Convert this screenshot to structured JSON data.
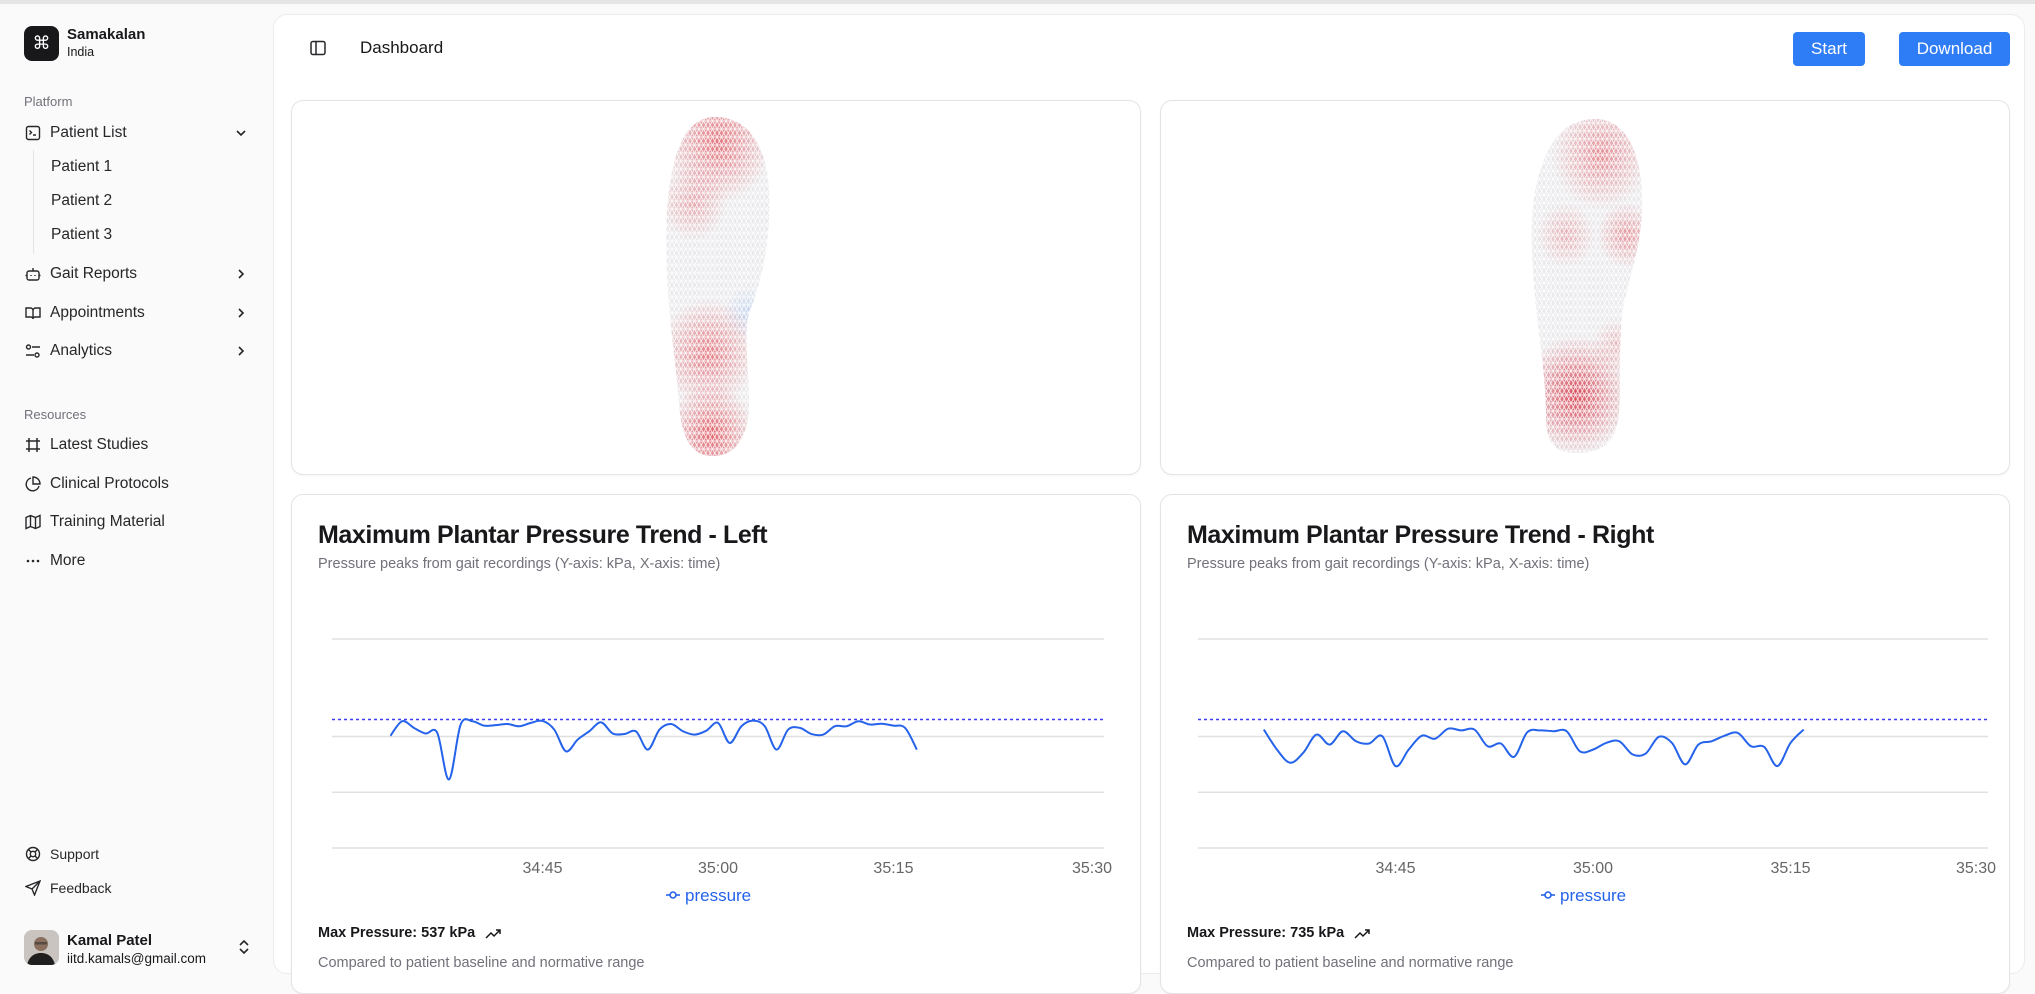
{
  "sidebar": {
    "brand": {
      "name": "Samakalan",
      "subtitle": "India",
      "icon": "command-icon"
    },
    "platform_label": "Platform",
    "platform_items": [
      {
        "label": "Patient List",
        "icon": "terminal-square-icon",
        "expanded": true,
        "children": [
          "Patient 1",
          "Patient 2",
          "Patient 3"
        ]
      },
      {
        "label": "Gait Reports",
        "icon": "bot-icon"
      },
      {
        "label": "Appointments",
        "icon": "book-open-icon"
      },
      {
        "label": "Analytics",
        "icon": "settings-sliders-icon"
      }
    ],
    "resources_label": "Resources",
    "resource_items": [
      {
        "label": "Latest Studies",
        "icon": "frame-icon"
      },
      {
        "label": "Clinical Protocols",
        "icon": "pie-chart-icon"
      },
      {
        "label": "Training Material",
        "icon": "map-icon"
      },
      {
        "label": "More",
        "icon": "more-horizontal-icon"
      }
    ],
    "footer_items": [
      {
        "label": "Support",
        "icon": "life-buoy-icon"
      },
      {
        "label": "Feedback",
        "icon": "send-icon"
      }
    ],
    "user": {
      "name": "Kamal Patel",
      "email": "iitd.kamals@gmail.com"
    }
  },
  "header": {
    "title": "Dashboard",
    "start_label": "Start",
    "download_label": "Download",
    "accent": "#2f7df6"
  },
  "foot_maps": [
    {
      "side": "left"
    },
    {
      "side": "right"
    }
  ],
  "charts": [
    {
      "title": "Maximum Plantar Pressure Trend - Left",
      "subtitle": "Pressure peaks from gait recordings (Y-axis: kPa, X-axis: time)",
      "max_label": "Max Pressure: 537 kPa",
      "compare_label": "Compared to patient baseline and normative range"
    },
    {
      "title": "Maximum Plantar Pressure Trend - Right",
      "subtitle": "Pressure peaks from gait recordings (Y-axis: kPa, X-axis: time)",
      "max_label": "Max Pressure: 735 kPa",
      "compare_label": "Compared to patient baseline and normative range"
    }
  ],
  "chart_data": [
    {
      "type": "line",
      "xticks": [
        "34:45",
        "35:00",
        "35:15",
        "35:30"
      ],
      "xlim": [
        "34:27",
        "35:33"
      ],
      "ylim": [
        0,
        750
      ],
      "grid_y": [
        0,
        200,
        400,
        750
      ],
      "reference_line": 461,
      "grid": true,
      "legend_position": "bottom",
      "color": "#2563eb",
      "series": [
        {
          "name": "pressure",
          "x_start": "34:32",
          "values": [
            403,
            455,
            431,
            411,
            413,
            246,
            443,
            455,
            439,
            441,
            445,
            437,
            449,
            456,
            425,
            347,
            389,
            419,
            451,
            411,
            409,
            418,
            353,
            425,
            445,
            419,
            407,
            421,
            449,
            377,
            437,
            457,
            437,
            353,
            425,
            431,
            409,
            407,
            437,
            437,
            455,
            443,
            446,
            439,
            431,
            353
          ]
        }
      ]
    },
    {
      "type": "line",
      "xticks": [
        "34:45",
        "35:00",
        "35:15",
        "35:30"
      ],
      "xlim": [
        "34:30",
        "35:30"
      ],
      "ylim": [
        0,
        750
      ],
      "grid_y": [
        0,
        200,
        400,
        750
      ],
      "reference_line": 461,
      "grid": true,
      "legend_position": "bottom",
      "color": "#2563eb",
      "series": [
        {
          "name": "pressure",
          "x_start": "34:35",
          "values": [
            425,
            353,
            306,
            342,
            407,
            371,
            419,
            383,
            375,
            401,
            294,
            353,
            403,
            392,
            428,
            422,
            425,
            365,
            375,
            327,
            415,
            422,
            419,
            419,
            347,
            353,
            377,
            383,
            336,
            339,
            399,
            377,
            300,
            371,
            383,
            403,
            413,
            365,
            363,
            294,
            377,
            425
          ]
        }
      ]
    }
  ]
}
